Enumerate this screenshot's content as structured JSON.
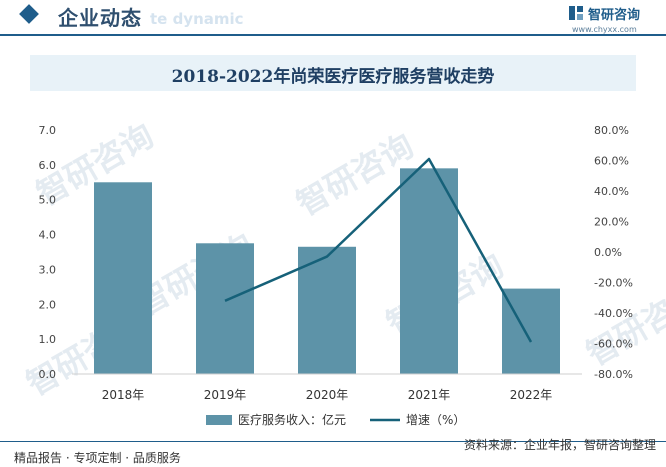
{
  "header": {
    "title": "企业动态",
    "title_ghost": "te dynamic",
    "brand_name": "智研咨询",
    "brand_url": "www.chyxx.com"
  },
  "watermark_text": "智研咨询",
  "footer": {
    "left": "精品报告 · 专项定制 · 品质服务",
    "source": "资料来源：企业年报，智研咨询整理"
  },
  "colors": {
    "bar": "#5d93a8",
    "line": "#166179",
    "brand": "#1f5d8b"
  },
  "chart_data": {
    "type": "bar",
    "title": "2018-2022年尚荣医疗医疗服务营收走势",
    "categories": [
      "2018年",
      "2019年",
      "2020年",
      "2021年",
      "2022年"
    ],
    "series": [
      {
        "name": "医疗服务收入：亿元",
        "type": "bar",
        "axis": "left",
        "values": [
          5.5,
          3.75,
          3.65,
          5.9,
          2.45
        ]
      },
      {
        "name": "增速（%）",
        "type": "line",
        "axis": "right",
        "values": [
          null,
          -32.0,
          -3.0,
          61.0,
          -59.0
        ]
      }
    ],
    "y_left": {
      "min": 0,
      "max": 7,
      "step": 1,
      "ticks": [
        "0.0",
        "1.0",
        "2.0",
        "3.0",
        "4.0",
        "5.0",
        "6.0",
        "7.0"
      ]
    },
    "y_right": {
      "min": -80,
      "max": 80,
      "step": 20,
      "ticks": [
        "-80.0%",
        "-60.0%",
        "-40.0%",
        "-20.0%",
        "0.0%",
        "20.0%",
        "40.0%",
        "60.0%",
        "80.0%"
      ]
    },
    "grid": false,
    "legend_position": "bottom"
  }
}
